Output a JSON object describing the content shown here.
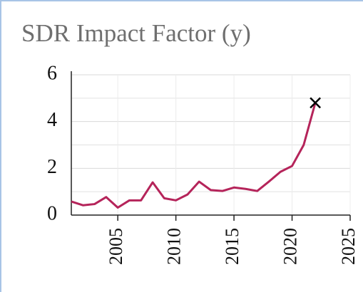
{
  "chart_data": {
    "type": "line",
    "title": "SDR Impact Factor (y)",
    "x": [
      2001,
      2002,
      2003,
      2004,
      2005,
      2006,
      2007,
      2008,
      2009,
      2010,
      2011,
      2012,
      2013,
      2014,
      2015,
      2016,
      2017,
      2018,
      2019,
      2020,
      2021,
      2022
    ],
    "series": [
      {
        "color": "#b5245a",
        "values": [
          0.58,
          0.42,
          0.47,
          0.77,
          0.32,
          0.63,
          0.63,
          1.4,
          0.72,
          0.63,
          0.88,
          1.43,
          1.07,
          1.03,
          1.18,
          1.12,
          1.03,
          1.43,
          1.85,
          2.1,
          3.0,
          4.8
        ]
      }
    ],
    "xlim": [
      2001,
      2025
    ],
    "xticks": [
      2005,
      2010,
      2015,
      2020,
      2025
    ],
    "ylim": [
      0,
      6
    ],
    "yticks": [
      0,
      2,
      4,
      6
    ],
    "minor_yticks": [
      1,
      3,
      5
    ],
    "grid": true,
    "last_point_marker": "x"
  }
}
